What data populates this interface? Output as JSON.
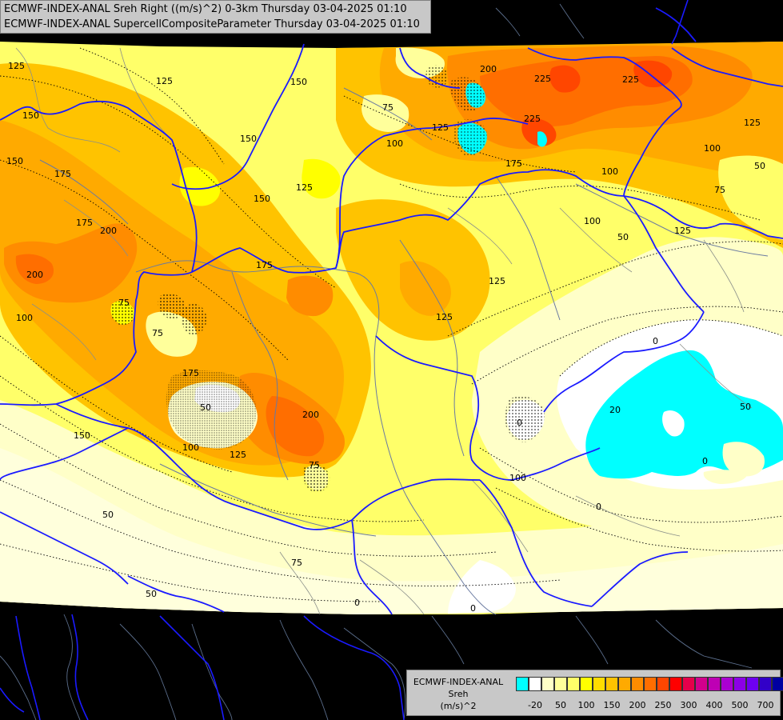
{
  "title": {
    "line1": "ECMWF-INDEX-ANAL Sreh Right ((m/s)^2) 0-3km Thursday 03-04-2025 01:10",
    "line2": "ECMWF-INDEX-ANAL SupercellCompositeParameter Thursday 03-04-2025 01:10"
  },
  "legend": {
    "line1": "ECMWF-INDEX-ANAL",
    "line2": "Sreh",
    "line3": "(m/s)^2",
    "colors": [
      "#00ffff",
      "#ffffff",
      "#ffffc8",
      "#ffff9b",
      "#ffff69",
      "#ffff00",
      "#ffdc00",
      "#ffc300",
      "#ffaa00",
      "#ff8c00",
      "#ff6e00",
      "#ff4600",
      "#ff0000",
      "#e6004b",
      "#d2008c",
      "#be00b4",
      "#aa00d2",
      "#8c00e6",
      "#6e00f0",
      "#3200c8",
      "#0000a0"
    ],
    "ticks": [
      "-20",
      "50",
      "100",
      "150",
      "200",
      "250",
      "300",
      "400",
      "500",
      "700"
    ]
  },
  "contour_labels": [
    {
      "text": "125"
    },
    {
      "text": "150"
    },
    {
      "text": "150"
    },
    {
      "text": "175"
    },
    {
      "text": "175"
    },
    {
      "text": "200"
    },
    {
      "text": "200"
    },
    {
      "text": "100"
    },
    {
      "text": "125"
    },
    {
      "text": "150"
    },
    {
      "text": "150"
    },
    {
      "text": "125"
    },
    {
      "text": "75"
    },
    {
      "text": "100"
    },
    {
      "text": "125"
    },
    {
      "text": "150"
    },
    {
      "text": "200"
    },
    {
      "text": "225"
    },
    {
      "text": "225"
    },
    {
      "text": "225"
    },
    {
      "text": "175"
    },
    {
      "text": "125"
    },
    {
      "text": "100"
    },
    {
      "text": "100"
    },
    {
      "text": "75"
    },
    {
      "text": "50"
    },
    {
      "text": "100"
    },
    {
      "text": "50"
    },
    {
      "text": "125"
    },
    {
      "text": "175"
    },
    {
      "text": "125"
    },
    {
      "text": "75"
    },
    {
      "text": "75"
    },
    {
      "text": "175"
    },
    {
      "text": "50"
    },
    {
      "text": "100"
    },
    {
      "text": "150"
    },
    {
      "text": "200"
    },
    {
      "text": "125"
    },
    {
      "text": "75"
    },
    {
      "text": "0"
    },
    {
      "text": "20"
    },
    {
      "text": "0"
    },
    {
      "text": "50"
    },
    {
      "text": "0"
    },
    {
      "text": "100"
    },
    {
      "text": "50"
    },
    {
      "text": "75"
    },
    {
      "text": "50"
    },
    {
      "text": "0"
    },
    {
      "text": "0"
    },
    {
      "text": "125"
    },
    {
      "text": "0"
    }
  ]
}
